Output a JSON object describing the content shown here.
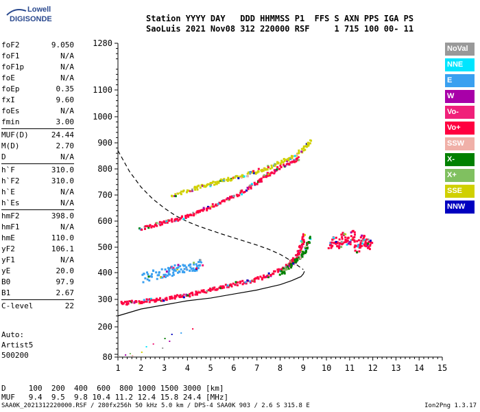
{
  "logo": {
    "line1": "Lowell",
    "line2": "DIGISONDE"
  },
  "header": {
    "line1": "Station YYYY DAY   DDD HHMMSS P1  FFS S AXN PPS IGA PS",
    "line2": "SaoLuis 2021 Nov08 312 220000 RSF     1 715 100 00- 11"
  },
  "params": [
    {
      "name": "foF2",
      "value": "9.050"
    },
    {
      "name": "foF1",
      "value": "N/A"
    },
    {
      "name": "foF1p",
      "value": "N/A"
    },
    {
      "name": "foE",
      "value": "N/A"
    },
    {
      "name": "foEp",
      "value": "0.35"
    },
    {
      "name": "fxI",
      "value": "9.60"
    },
    {
      "name": "foEs",
      "value": "N/A"
    },
    {
      "name": "fmin",
      "value": "3.00"
    },
    {
      "sep": true
    },
    {
      "name": "MUF(D)",
      "value": "24.44"
    },
    {
      "name": "M(D)",
      "value": "2.70"
    },
    {
      "name": "D",
      "value": "N/A"
    },
    {
      "sep": true
    },
    {
      "name": "h`F",
      "value": "310.0"
    },
    {
      "name": "h`F2",
      "value": "310.0"
    },
    {
      "name": "h`E",
      "value": "N/A"
    },
    {
      "name": "h`Es",
      "value": "N/A"
    },
    {
      "sep": true
    },
    {
      "name": "hmF2",
      "value": "398.0"
    },
    {
      "name": "hmF1",
      "value": "N/A"
    },
    {
      "name": "hmE",
      "value": "110.0"
    },
    {
      "name": "yF2",
      "value": "106.1"
    },
    {
      "name": "yF1",
      "value": "N/A"
    },
    {
      "name": "yE",
      "value": "20.0"
    },
    {
      "name": "B0",
      "value": "97.9"
    },
    {
      "name": "B1",
      "value": "2.67"
    },
    {
      "sep": true
    },
    {
      "name": "C-level",
      "value": "22"
    }
  ],
  "auto": {
    "line1": "Auto:",
    "line2": "Artist5",
    "line3": "500200"
  },
  "legend": [
    {
      "label": "NoVal",
      "color": "#999999"
    },
    {
      "label": "NNE",
      "color": "#00e5ff"
    },
    {
      "label": "E",
      "color": "#3aa0f0"
    },
    {
      "label": "W",
      "color": "#a800a8"
    },
    {
      "label": "Vo-",
      "color": "#f0207a"
    },
    {
      "label": "Vo+",
      "color": "#ff0040"
    },
    {
      "label": "SSW",
      "color": "#f0b0a8"
    },
    {
      "label": "X-",
      "color": "#008000"
    },
    {
      "label": "X+",
      "color": "#80c060"
    },
    {
      "label": "SSE",
      "color": "#d0d000"
    },
    {
      "label": "NNW",
      "color": "#0000c0"
    }
  ],
  "footer": {
    "d_row": "D     100  200  400  600  800 1000 1500 3000 [km]",
    "muf_row": "MUF   9.4  9.5  9.8 10.4 11.2 12.4 15.8 24.4 [MHz]",
    "file_info": "SAA0K_2021312220000.RSF / 280fx256h 50 kHz 5.0 km / DPS-4 SAA0K 903 / 2.6 S 315.8 E",
    "version": "Ion2Png 1.3.17"
  },
  "chart_data": {
    "type": "scatter",
    "xlabel": "",
    "ylabel": "",
    "xlim": [
      1,
      15
    ],
    "ylim": [
      80,
      1280
    ],
    "x_ticks": [
      1,
      2,
      3,
      4,
      5,
      6,
      7,
      8,
      9,
      10,
      11,
      12,
      13,
      14,
      15
    ],
    "y_ticks": [
      80,
      100,
      200,
      300,
      400,
      500,
      600,
      700,
      800,
      900,
      1000,
      1100,
      1280
    ],
    "y_tick_labels": [
      "80",
      "",
      "200",
      "300",
      "400",
      "500",
      "600",
      "700",
      "800",
      "900",
      "1000",
      "1100",
      "1280"
    ],
    "grid": false,
    "traces": [
      {
        "name": "o-trace",
        "color": "#ff0040",
        "x": [
          1.1,
          1.5,
          2.0,
          2.5,
          3.0,
          3.5,
          4.0,
          4.5,
          5.0,
          5.5,
          6.0,
          6.5,
          7.0,
          7.5,
          8.0,
          8.3,
          8.5,
          8.7,
          8.8,
          8.9,
          9.0
        ],
        "y": [
          290,
          292,
          296,
          300,
          306,
          313,
          320,
          330,
          340,
          350,
          360,
          370,
          380,
          395,
          415,
          432,
          448,
          470,
          490,
          515,
          550
        ]
      },
      {
        "name": "x-trace",
        "color": "#008000",
        "x": [
          8.0,
          8.3,
          8.6,
          8.9,
          9.1,
          9.3
        ],
        "y": [
          400,
          420,
          445,
          470,
          500,
          540
        ]
      },
      {
        "name": "2F-trace",
        "color": "#ff0040",
        "x": [
          1.9,
          2.5,
          3.0,
          3.5,
          4.0,
          4.5,
          5.0,
          5.5,
          6.0,
          6.5,
          7.0,
          7.3
        ],
        "y": [
          575,
          585,
          600,
          610,
          625,
          640,
          660,
          680,
          700,
          725,
          755,
          775
        ]
      },
      {
        "name": "3F-trace",
        "color": "#d0d000",
        "x": [
          3.3,
          4.0,
          4.5,
          5.0,
          5.5,
          6.0,
          6.5,
          7.0,
          7.5,
          8.0,
          8.5,
          9.0,
          9.3
        ],
        "y": [
          700,
          720,
          735,
          745,
          760,
          770,
          780,
          795,
          810,
          830,
          850,
          880,
          910
        ]
      },
      {
        "name": "oblique-2F",
        "color": "#ff0040",
        "x": [
          7.3,
          7.5,
          8.0,
          8.5,
          8.8
        ],
        "y": [
          775,
          785,
          810,
          830,
          845
        ]
      },
      {
        "name": "spread-E",
        "color": "#3aa0f0",
        "x": [
          2.0,
          2.5,
          3.0,
          3.3,
          3.6,
          4.0,
          4.3,
          4.6
        ],
        "y": [
          385,
          395,
          400,
          410,
          420,
          425,
          430,
          440
        ]
      },
      {
        "name": "spread-F-cluster",
        "color": "#ff0040",
        "x": [
          10.1,
          10.3,
          10.5,
          10.7,
          10.9,
          11.1,
          11.3,
          11.5,
          11.7,
          11.9
        ],
        "y": [
          510,
          530,
          500,
          550,
          520,
          560,
          490,
          540,
          520,
          510
        ]
      }
    ],
    "profile_solid": {
      "x": [
        1.0,
        2.0,
        3.0,
        4.0,
        5.0,
        6.0,
        7.0,
        8.0,
        8.5,
        8.9,
        9.0,
        9.05
      ],
      "y": [
        240,
        265,
        280,
        295,
        305,
        320,
        335,
        355,
        370,
        385,
        395,
        405
      ]
    },
    "profile_dashed": {
      "x": [
        1.0,
        1.5,
        2.0,
        2.5,
        3.0,
        3.5,
        4.0,
        4.5,
        5.0,
        5.5,
        6.0,
        6.5,
        7.0,
        7.5,
        8.0,
        8.5,
        9.0
      ],
      "y": [
        870,
        790,
        730,
        685,
        650,
        620,
        598,
        580,
        565,
        550,
        536,
        522,
        508,
        492,
        472,
        445,
        412
      ]
    },
    "low_scatter": {
      "x": [
        1.0,
        1.3,
        1.6,
        2.0,
        2.2,
        2.5,
        3.0,
        3.3,
        3.7,
        4.2,
        1.5,
        2.9,
        3.2
      ],
      "y": [
        90,
        100,
        95,
        110,
        130,
        140,
        160,
        175,
        180,
        195,
        105,
        125,
        150
      ]
    }
  }
}
